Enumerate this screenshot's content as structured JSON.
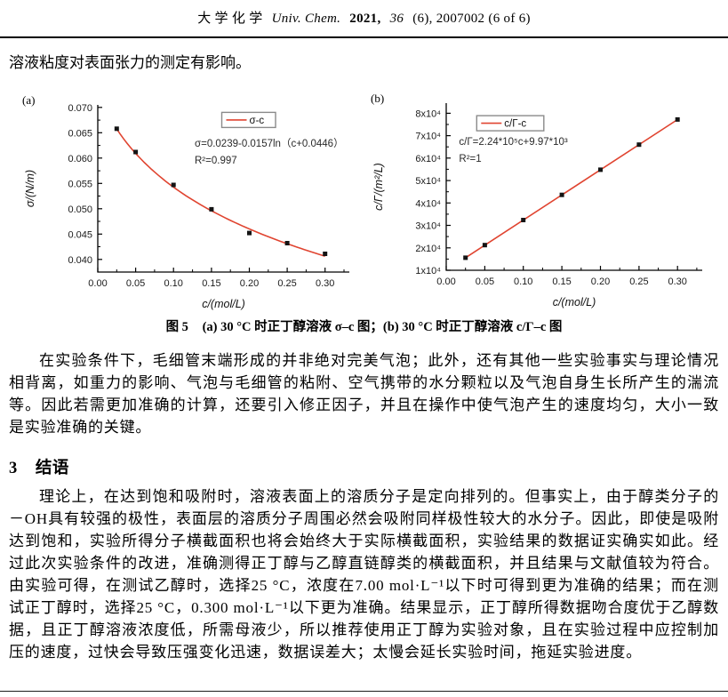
{
  "header": {
    "journal_cn": "大 学 化 学",
    "journal_en": "Univ. Chem.",
    "year": "2021,",
    "volume": "36",
    "rest": "(6), 2007002 (6 of 6)"
  },
  "intro_text": "溶液粘度对表面张力的测定有影响。",
  "figure": {
    "caption_label": "图 5",
    "caption_text": "(a) 30 °C 时正丁醇溶液 σ–c 图；(b) 30 °C 时正丁醇溶液 c/Γ–c 图"
  },
  "chart_data": [
    {
      "id": "a",
      "type": "scatter",
      "panel_label": "(a)",
      "legend": "σ-c",
      "legend_position": "top-center",
      "equation": "σ=0.0239-0.0157ln（c+0.0446）",
      "r_squared": "R²=0.997",
      "xlabel": "c/(mol/L)",
      "ylabel": "σ/(N/m)",
      "xlim": [
        0,
        0.332
      ],
      "ylim": [
        0.0375,
        0.0705
      ],
      "xticks": [
        0.0,
        0.05,
        0.1,
        0.15,
        0.2,
        0.25,
        0.3
      ],
      "xtick_labels": [
        "0.00",
        "0.05",
        "0.10",
        "0.15",
        "0.20",
        "0.25",
        "0.30"
      ],
      "yticks": [
        0.04,
        0.045,
        0.05,
        0.055,
        0.06,
        0.065,
        0.07
      ],
      "ytick_labels": [
        "0.040",
        "0.045",
        "0.050",
        "0.055",
        "0.060",
        "0.065",
        "0.070"
      ],
      "x": [
        0.025,
        0.05,
        0.1,
        0.15,
        0.2,
        0.25,
        0.3
      ],
      "y": [
        0.0658,
        0.0612,
        0.0547,
        0.0499,
        0.0452,
        0.0432,
        0.0411
      ],
      "fit": {
        "type": "log",
        "a": 0.0239,
        "b": -0.0157,
        "c": 0.0446
      },
      "line_color": "#e04430",
      "marker_color": "#141414",
      "grid": false,
      "legend_pos": [
        0.6,
        0.09
      ],
      "equation_pos": [
        0.385,
        0.25
      ]
    },
    {
      "id": "b",
      "type": "scatter",
      "panel_label": "(b)",
      "legend": "c/Γ-c",
      "legend_position": "top-left",
      "equation": "c/Γ=2.24*10⁵c+9.97*10³",
      "r_squared": "R²=1",
      "xlabel": "c/(mol/L)",
      "ylabel": "c/Γ/(m²/L)",
      "xlim": [
        0,
        0.332
      ],
      "ylim": [
        10000,
        84500
      ],
      "xticks": [
        0.0,
        0.05,
        0.1,
        0.15,
        0.2,
        0.25,
        0.3
      ],
      "xtick_labels": [
        "0.00",
        "0.05",
        "0.10",
        "0.15",
        "0.20",
        "0.25",
        "0.30"
      ],
      "yticks": [
        10000,
        20000,
        30000,
        40000,
        50000,
        60000,
        70000,
        80000
      ],
      "ytick_labels": [
        "1x10⁴",
        "2x10⁴",
        "3x10⁴",
        "4x10⁴",
        "5x10⁴",
        "6x10⁴",
        "7x10⁴",
        "8x10⁴"
      ],
      "x": [
        0.025,
        0.05,
        0.1,
        0.15,
        0.2,
        0.25,
        0.3
      ],
      "y": [
        15600,
        21200,
        32400,
        43600,
        54800,
        66000,
        77200
      ],
      "fit": {
        "type": "linear",
        "slope": 224000,
        "intercept": 9970
      },
      "line_color": "#e04430",
      "marker_color": "#141414",
      "grid": false,
      "legend_pos": [
        0.25,
        0.12
      ],
      "equation_pos": [
        0.05,
        0.25
      ]
    }
  ],
  "paragraphs": {
    "p1": "在实验条件下，毛细管末端形成的并非绝对完美气泡；此外，还有其他一些实验事实与理论情况相背离，如重力的影响、气泡与毛细管的粘附、空气携带的水分颗粒以及气泡自身生长所产生的湍流等。因此若需更加准确的计算，还要引入修正因子，并且在操作中使气泡产生的速度均匀，大小一致是实验准确的关键。",
    "p2": "理论上，在达到饱和吸附时，溶液表面上的溶质分子是定向排列的。但事实上，由于醇类分子的－OH具有较强的极性，表面层的溶质分子周围必然会吸附同样极性较大的水分子。因此，即使是吸附达到饱和，实验所得分子横截面积也将会始终大于实际横截面积，实验结果的数据证实确实如此。经过此次实验条件的改进，准确测得正丁醇与乙醇直链醇类的横截面积，并且结果与文献值较为符合。由实验可得，在测试乙醇时，选择25 °C，浓度在7.00 mol·L⁻¹以下时可得到更为准确的结果；而在测试正丁醇时，选择25 °C，0.300 mol·L⁻¹以下更为准确。结果显示，正丁醇所得数据吻合度优于乙醇数据，且正丁醇溶液浓度低，所需母液少，所以推荐使用正丁醇为实验对象，且在实验过程中应控制加压的速度，过快会导致压强变化迅速，数据误差大；太慢会延长实验时间，拖延实验进度。"
  },
  "section": {
    "number": "3",
    "title": "结语"
  }
}
